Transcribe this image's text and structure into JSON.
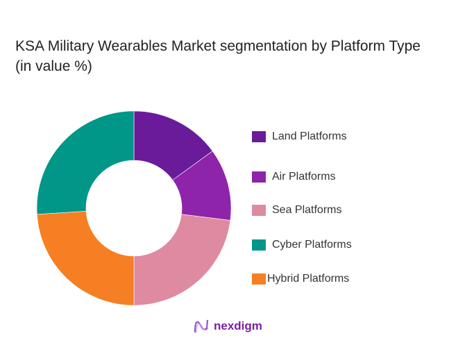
{
  "title": "KSA Military Wearables Market segmentation by Platform Type (in value %)",
  "chart_data": {
    "type": "pie",
    "donut": true,
    "title": "KSA Military Wearables Market segmentation by Platform Type (in value %)",
    "categories": [
      "Land Platforms",
      "Air Platforms",
      "Sea Platforms",
      "Cyber Platforms",
      "Hybrid Platforms"
    ],
    "values": [
      15,
      12,
      23,
      26,
      24
    ],
    "colors": [
      "#6a1b9a",
      "#8e24aa",
      "#de8aa1",
      "#009688",
      "#f57f22"
    ],
    "draw_order": [
      "Land Platforms",
      "Air Platforms",
      "Sea Platforms",
      "Hybrid Platforms",
      "Cyber Platforms"
    ],
    "legend_position": "right"
  },
  "brand": {
    "name": "nexdigm",
    "color": "#7b1fa2"
  }
}
